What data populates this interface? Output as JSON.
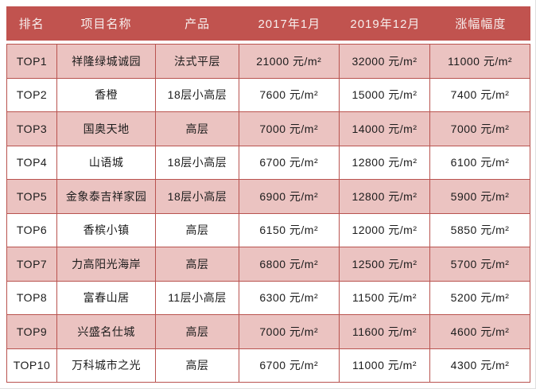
{
  "colors": {
    "header_bg": "#C1534F",
    "header_text": "#F7EFEE",
    "row_pink": "#EBC3C1",
    "row_white": "#FFFFFF",
    "grid_border": "#B9534F",
    "body_text": "#1C1C1C"
  },
  "chart_data": {
    "type": "table",
    "unit": "元/m²",
    "columns": [
      {
        "key": "rank",
        "label": "排名"
      },
      {
        "key": "name",
        "label": "项目名称"
      },
      {
        "key": "product",
        "label": "产品"
      },
      {
        "key": "price_2017_01",
        "label": "2017年1月"
      },
      {
        "key": "price_2019_12",
        "label": "2019年12月"
      },
      {
        "key": "increase",
        "label": "涨幅幅度"
      }
    ],
    "rows": [
      {
        "rank": "TOP1",
        "name": "祥隆绿城诚园",
        "product": "法式平层",
        "price_2017_01": 21000,
        "price_2019_12": 32000,
        "increase": 11000
      },
      {
        "rank": "TOP2",
        "name": "香橙",
        "product": "18层小高层",
        "price_2017_01": 7600,
        "price_2019_12": 15000,
        "increase": 7400
      },
      {
        "rank": "TOP3",
        "name": "国奥天地",
        "product": "高层",
        "price_2017_01": 7000,
        "price_2019_12": 14000,
        "increase": 7000
      },
      {
        "rank": "TOP4",
        "name": "山语城",
        "product": "18层小高层",
        "price_2017_01": 6700,
        "price_2019_12": 12800,
        "increase": 6100
      },
      {
        "rank": "TOP5",
        "name": "金象泰吉祥家园",
        "product": "18层小高层",
        "price_2017_01": 6900,
        "price_2019_12": 12800,
        "increase": 5900
      },
      {
        "rank": "TOP6",
        "name": "香槟小镇",
        "product": "高层",
        "price_2017_01": 6150,
        "price_2019_12": 12000,
        "increase": 5850
      },
      {
        "rank": "TOP7",
        "name": "力高阳光海岸",
        "product": "高层",
        "price_2017_01": 6800,
        "price_2019_12": 12500,
        "increase": 5700
      },
      {
        "rank": "TOP8",
        "name": "富春山居",
        "product": "11层小高层",
        "price_2017_01": 6300,
        "price_2019_12": 11500,
        "increase": 5200
      },
      {
        "rank": "TOP9",
        "name": "兴盛名仕城",
        "product": "高层",
        "price_2017_01": 7000,
        "price_2019_12": 11600,
        "increase": 4600
      },
      {
        "rank": "TOP10",
        "name": "万科城市之光",
        "product": "高层",
        "price_2017_01": 6700,
        "price_2019_12": 11000,
        "increase": 4300
      }
    ]
  }
}
